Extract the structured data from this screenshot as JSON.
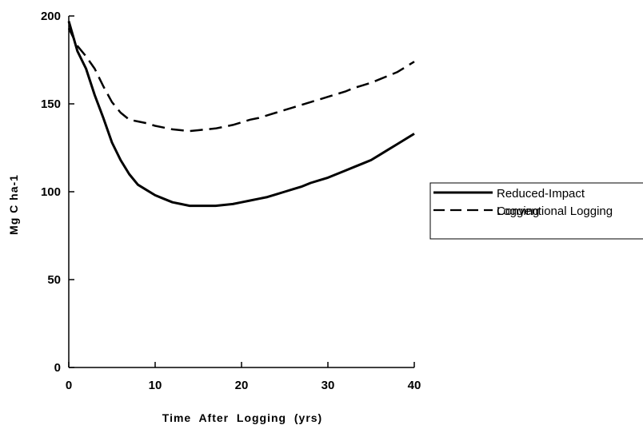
{
  "chart_data": {
    "type": "line",
    "xlabel": "Time  After  Logging  (yrs)",
    "ylabel": "Mg  C  ha-1",
    "xlim": [
      0,
      40
    ],
    "ylim": [
      0,
      200
    ],
    "xticks": [
      0,
      10,
      20,
      30,
      40
    ],
    "yticks": [
      0,
      50,
      100,
      150,
      200
    ],
    "grid": false,
    "legend_position": "right",
    "series": [
      {
        "name_lines": [
          "Reduced-Impact",
          "Logging"
        ],
        "style": "solid",
        "color": "#000000",
        "x": [
          0,
          1,
          2,
          3,
          4,
          5,
          6,
          7,
          8,
          9,
          10,
          11,
          12,
          13,
          14,
          15,
          16,
          17,
          18,
          19,
          20,
          21,
          22,
          23,
          24,
          25,
          26,
          27,
          28,
          29,
          30,
          31,
          32,
          33,
          34,
          35,
          36,
          37,
          38,
          39,
          40
        ],
        "y": [
          197,
          180,
          170,
          155,
          142,
          128,
          118,
          110,
          104,
          101,
          98,
          96,
          94,
          93,
          92,
          92,
          92,
          92,
          92.5,
          93,
          94,
          95,
          96,
          97,
          98.5,
          100,
          101.5,
          103,
          105,
          106.5,
          108,
          110,
          112,
          114,
          116,
          118,
          121,
          124,
          127,
          130,
          133
        ]
      },
      {
        "name_lines": [
          "Conventional Logging"
        ],
        "style": "dashed",
        "color": "#000000",
        "x": [
          0,
          1,
          2,
          3,
          4,
          5,
          6,
          7,
          8,
          9,
          10,
          11,
          12,
          13,
          14,
          15,
          16,
          17,
          18,
          19,
          20,
          21,
          22,
          23,
          24,
          25,
          26,
          27,
          28,
          29,
          30,
          31,
          32,
          33,
          34,
          35,
          36,
          37,
          38,
          39,
          40
        ],
        "y": [
          193,
          183,
          177,
          170,
          160,
          151,
          145,
          141,
          140,
          139,
          137.5,
          136.5,
          135.5,
          135,
          134.5,
          135,
          135.5,
          136,
          137,
          138,
          139.5,
          141,
          142,
          143.5,
          145,
          146.5,
          148,
          149.5,
          151,
          152.5,
          154,
          155.5,
          157,
          159,
          160.5,
          162,
          164,
          166,
          168,
          171,
          174
        ]
      }
    ]
  }
}
